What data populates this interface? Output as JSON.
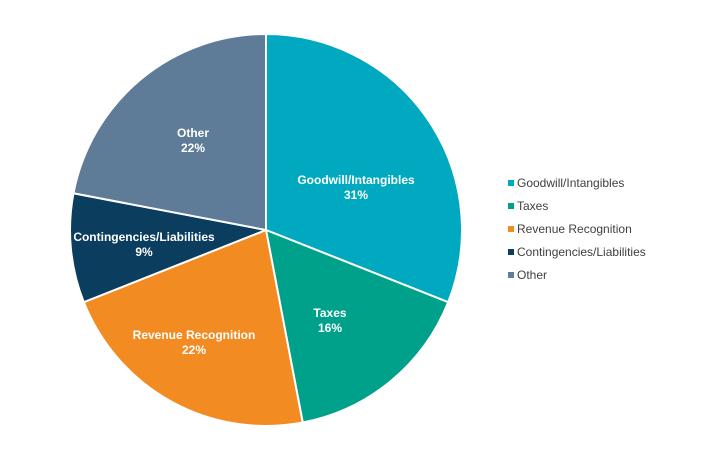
{
  "chart_data": {
    "type": "pie",
    "title": "",
    "categories": [
      "Goodwill/Intangibles",
      "Taxes",
      "Revenue Recognition",
      "Contingencies/Liabilities",
      "Other"
    ],
    "values": [
      31,
      16,
      22,
      9,
      22
    ],
    "value_labels": [
      "31%",
      "16%",
      "22%",
      "9%",
      "22%"
    ],
    "colors": [
      "#00a9c0",
      "#00a18b",
      "#f28b22",
      "#0b3d5f",
      "#5e7b98"
    ],
    "start_angle_deg": 0,
    "direction": "clockwise",
    "legend": {
      "position": "right",
      "entries": [
        "Goodwill/Intangibles",
        "Taxes",
        "Revenue Recognition",
        "Contingencies/Liabilities",
        "Other"
      ]
    }
  }
}
